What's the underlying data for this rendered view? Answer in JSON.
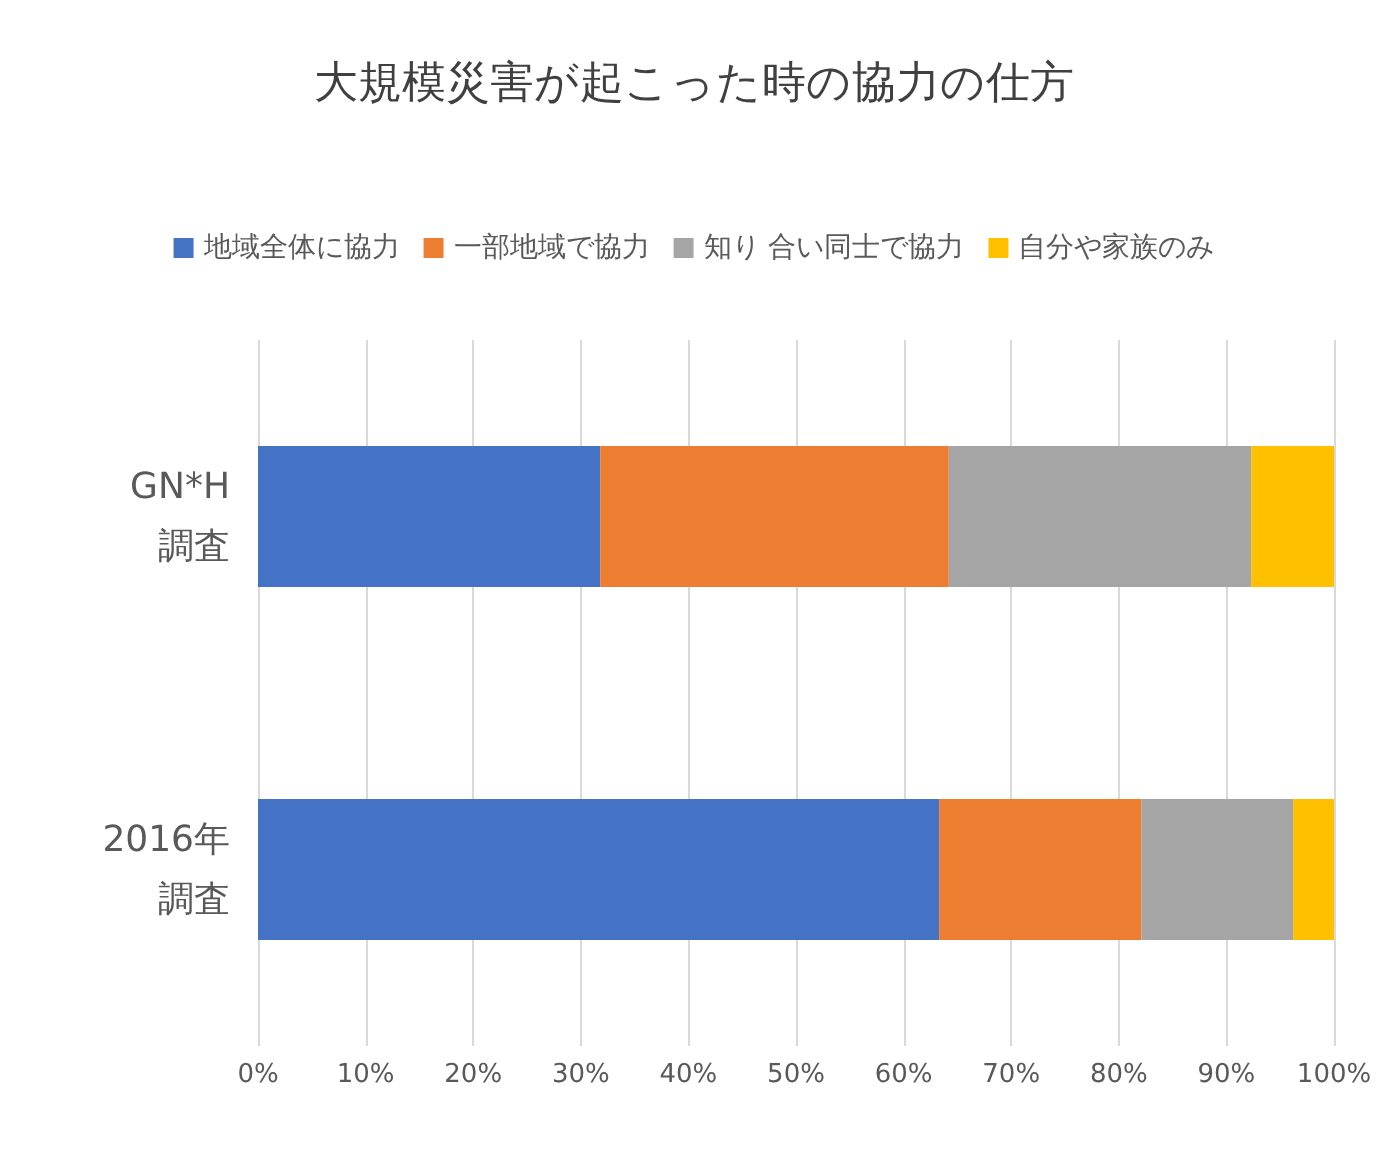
{
  "chart_data": {
    "type": "bar",
    "orientation": "horizontal",
    "stacked": true,
    "title": "大規模災害が起こった時の協力の仕方",
    "categories": [
      "GN*H調査",
      "2016年調査"
    ],
    "series": [
      {
        "name": "地域全体に協力",
        "color": "#4472c4",
        "values": [
          31.8,
          63.3
        ]
      },
      {
        "name": "一部地域で協力",
        "color": "#ed7d31",
        "values": [
          32.4,
          18.8
        ]
      },
      {
        "name": "知り 合い同士で協力",
        "color": "#a5a5a5",
        "values": [
          28.1,
          14.1
        ]
      },
      {
        "name": "自分や家族のみ",
        "color": "#ffc000",
        "values": [
          7.7,
          3.8
        ]
      }
    ],
    "xlim": [
      0,
      100
    ],
    "xticks": [
      {
        "value": 0,
        "label": "0%"
      },
      {
        "value": 10,
        "label": "10%"
      },
      {
        "value": 20,
        "label": "20%"
      },
      {
        "value": 30,
        "label": "30%"
      },
      {
        "value": 40,
        "label": "40%"
      },
      {
        "value": 50,
        "label": "50%"
      },
      {
        "value": 60,
        "label": "60%"
      },
      {
        "value": 70,
        "label": "70%"
      },
      {
        "value": 80,
        "label": "80%"
      },
      {
        "value": 90,
        "label": "90%"
      },
      {
        "value": 100,
        "label": "100%"
      }
    ],
    "grid": "x",
    "legend": "top"
  }
}
